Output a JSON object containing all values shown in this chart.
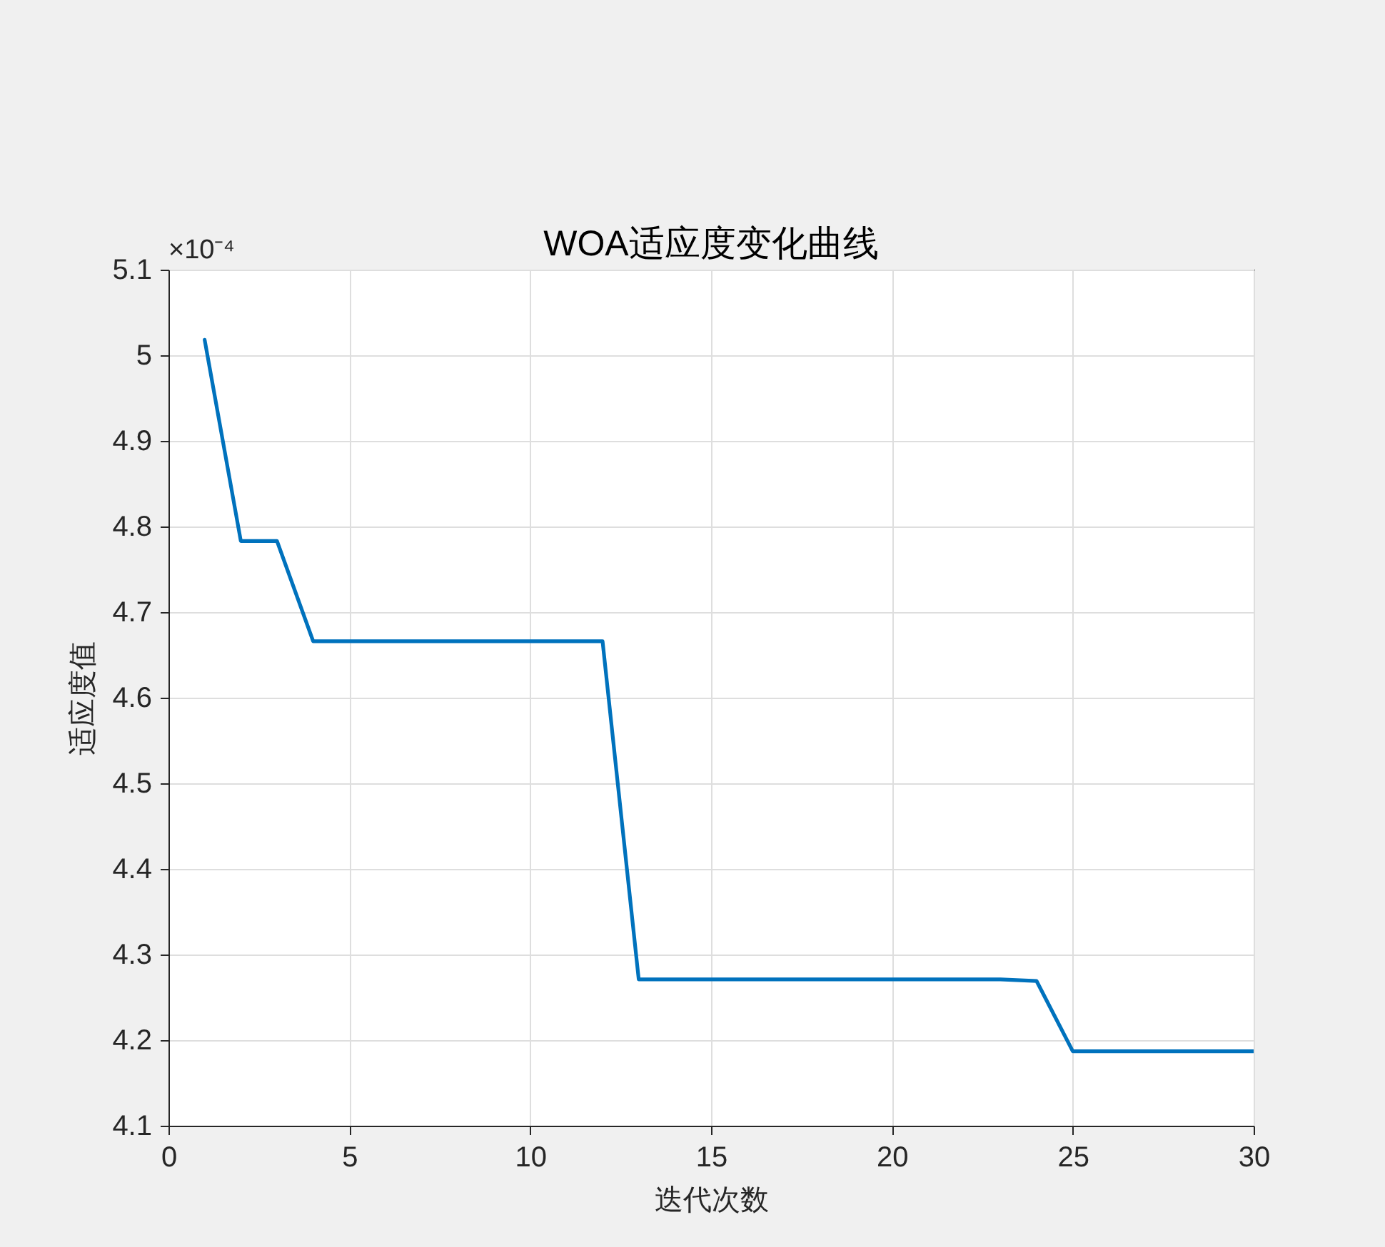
{
  "chart_data": {
    "type": "line",
    "title": "WOA适应度变化曲线",
    "xlabel": "迭代次数",
    "ylabel": "适应度值",
    "annotations": [
      "×10⁻⁴"
    ],
    "x": [
      1,
      2,
      3,
      4,
      5,
      6,
      7,
      8,
      9,
      10,
      11,
      12,
      13,
      14,
      15,
      16,
      17,
      18,
      19,
      20,
      21,
      22,
      23,
      24,
      25,
      26,
      27,
      28,
      29,
      30
    ],
    "series": [
      {
        "color": "#0072bd",
        "values": [
          5.018,
          4.783,
          4.783,
          4.666,
          4.666,
          4.666,
          4.666,
          4.666,
          4.666,
          4.666,
          4.666,
          4.666,
          4.271,
          4.271,
          4.271,
          4.271,
          4.271,
          4.271,
          4.271,
          4.271,
          4.271,
          4.271,
          4.271,
          4.269,
          4.187,
          4.187,
          4.187,
          4.187,
          4.187,
          4.187
        ]
      }
    ],
    "xlim": [
      0,
      30
    ],
    "xticks": [
      0,
      5,
      10,
      15,
      20,
      25,
      30
    ],
    "ylim": [
      4.1,
      5.1
    ],
    "yticks": [
      4.1,
      4.2,
      4.3,
      4.4,
      4.5,
      4.6,
      4.7,
      4.8,
      4.9,
      5,
      5.1
    ],
    "grid": true,
    "marker": "none",
    "line_style": "solid"
  }
}
